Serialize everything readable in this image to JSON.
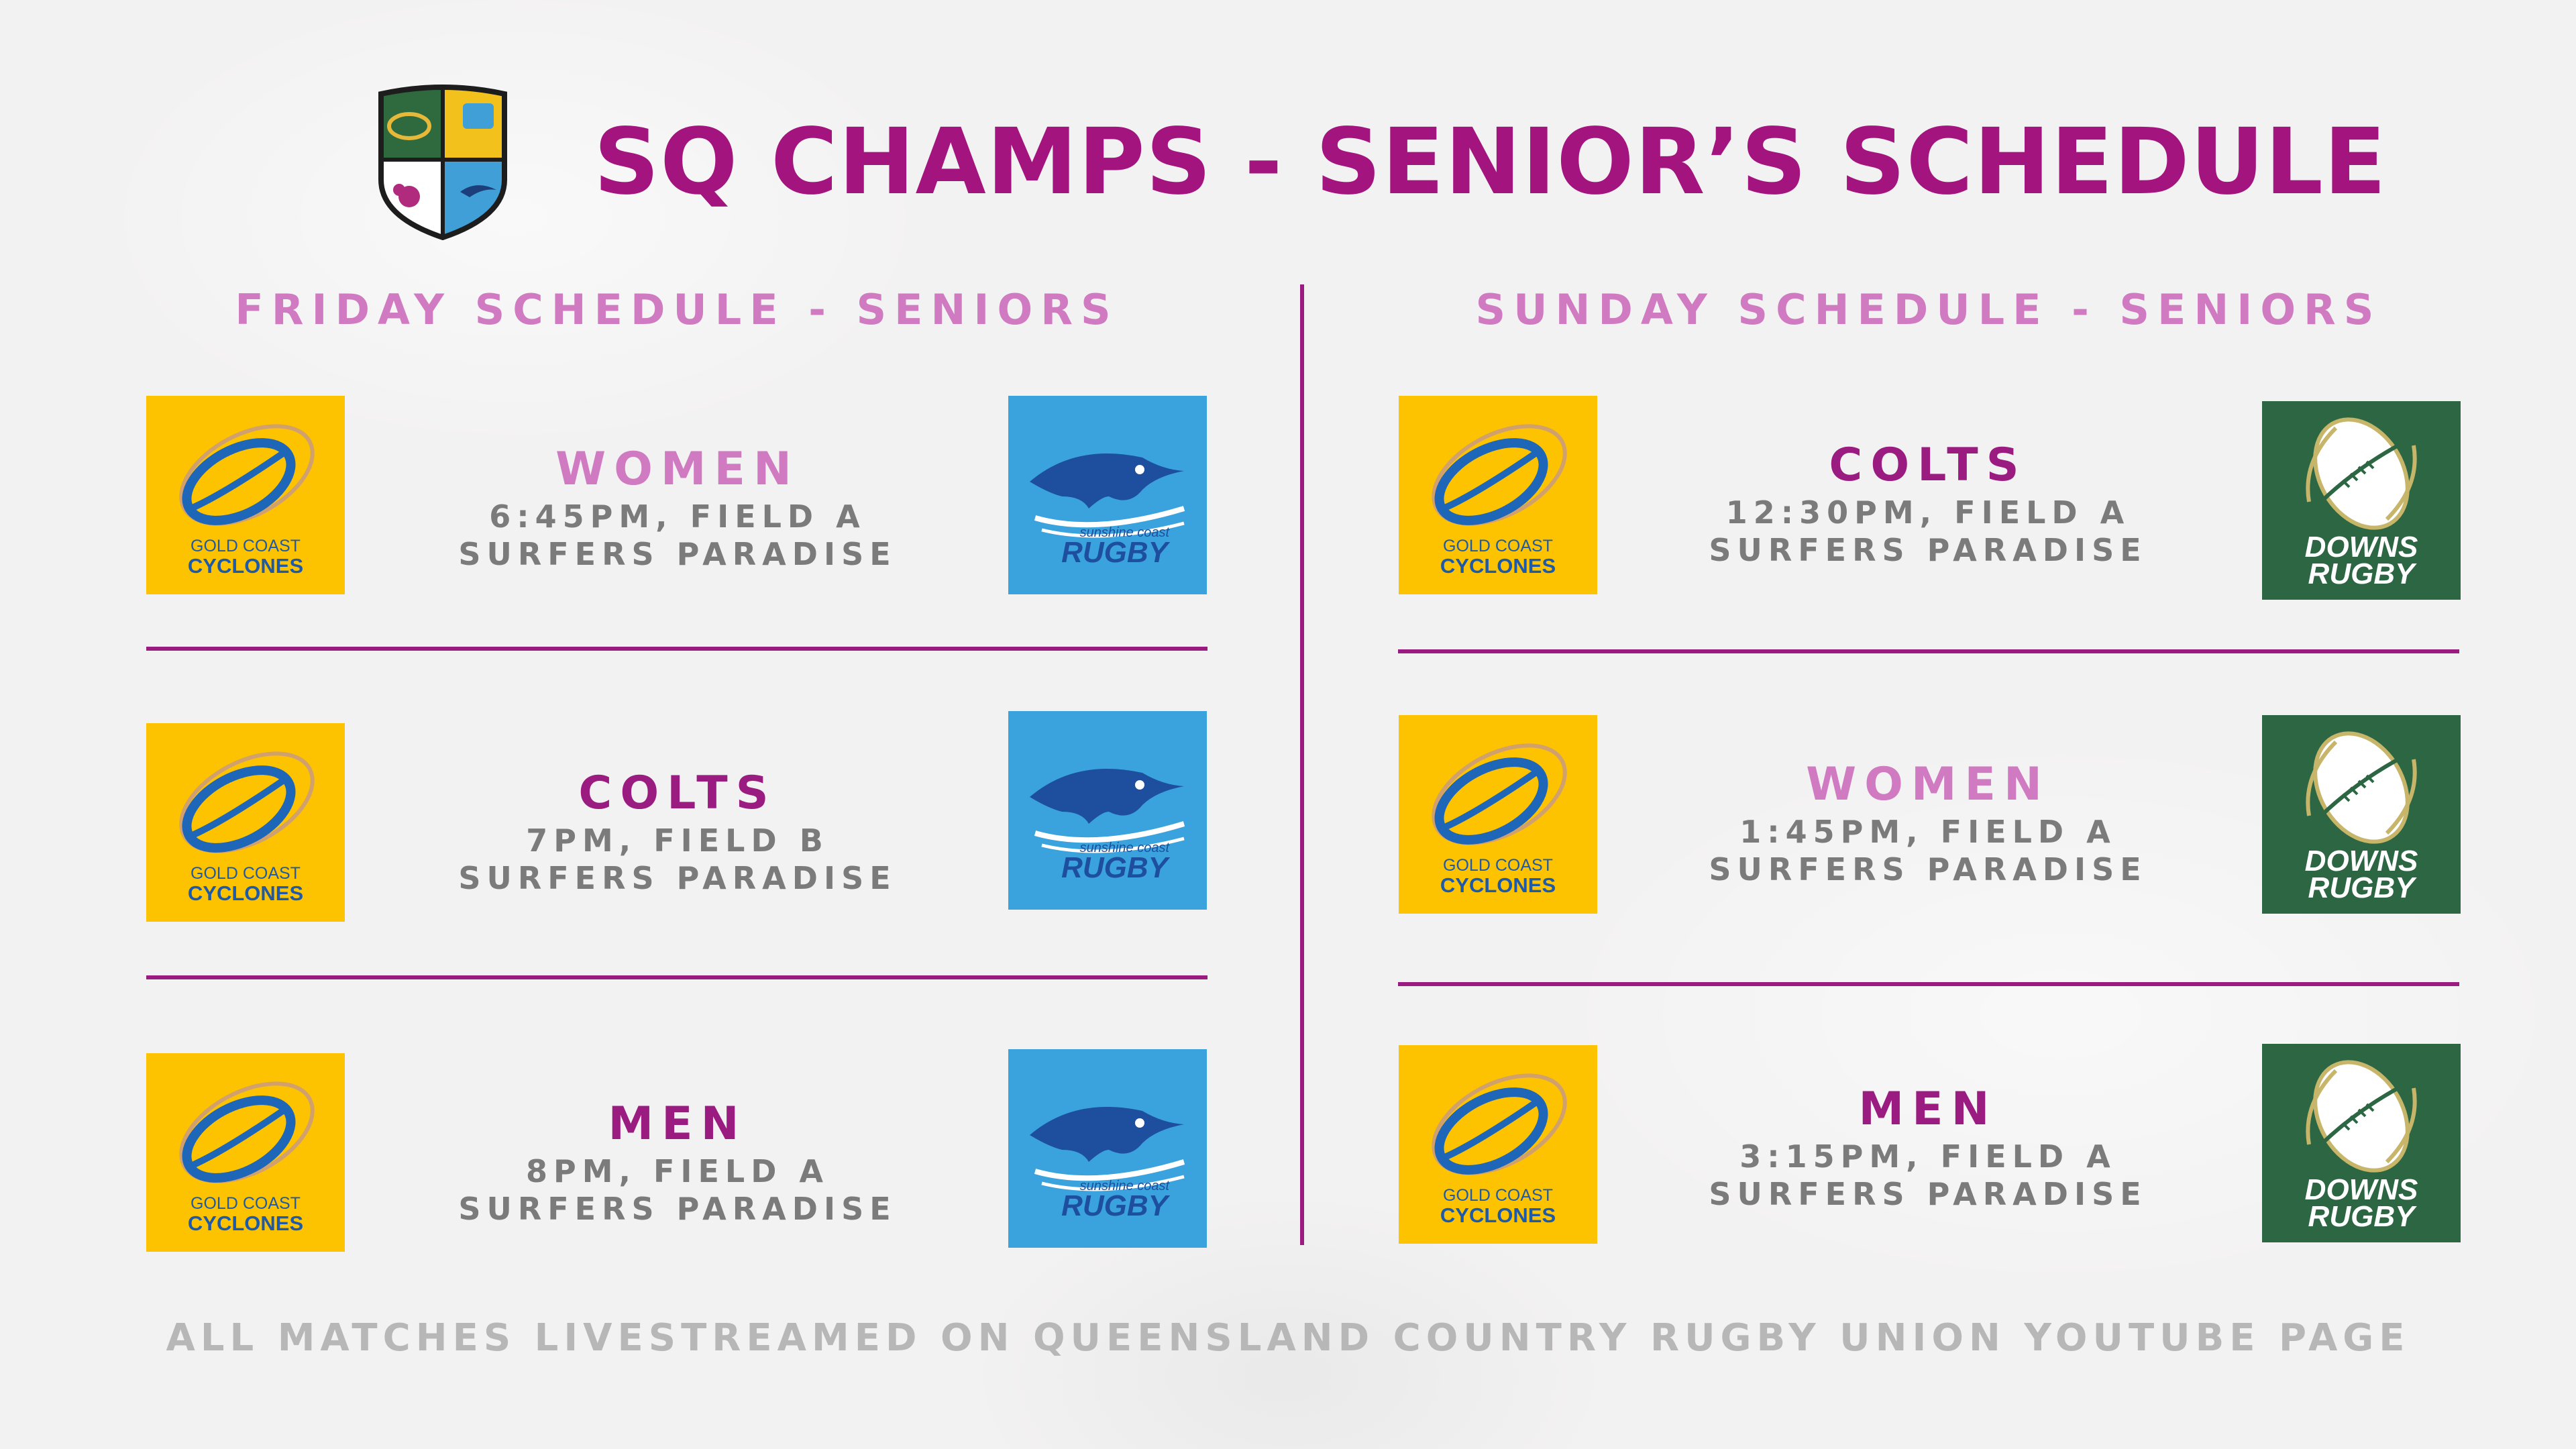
{
  "header": {
    "title": "SQ CHAMPS - SENIOR’S SCHEDULE",
    "crest_icon": "union-crest-icon"
  },
  "colors": {
    "title": "#a3147f",
    "heading": "#d07ac1",
    "divider": "#9b1c81",
    "detail_text": "#7b7b7b",
    "footer_text": "#b7b7b7",
    "gold_coast_bg": "#fdc300",
    "sunshine_coast_bg": "#3aa3dd",
    "downs_bg": "#2c6642"
  },
  "teams": {
    "gold_coast": {
      "line1": "GOLD COAST",
      "line2": "CYCLONES",
      "icon": "gold-coast-cyclones-logo"
    },
    "sunshine_coast": {
      "small": "sunshine coast",
      "big": "RUGBY",
      "icon": "sunshine-coast-rugby-logo"
    },
    "downs": {
      "line1": "DOWNS",
      "line2": "RUGBY",
      "icon": "downs-rugby-logo"
    }
  },
  "friday": {
    "heading": "FRIDAY SCHEDULE - SENIORS",
    "matches": [
      {
        "division": "WOMEN",
        "time": "6:45PM, FIELD A",
        "venue": "SURFERS PARADISE",
        "home": "gold_coast",
        "away": "sunshine_coast"
      },
      {
        "division": "COLTS",
        "time": "7PM, FIELD B",
        "venue": "SURFERS PARADISE",
        "home": "gold_coast",
        "away": "sunshine_coast"
      },
      {
        "division": "MEN",
        "time": "8PM, FIELD A",
        "venue": "SURFERS PARADISE",
        "home": "gold_coast",
        "away": "sunshine_coast"
      }
    ]
  },
  "sunday": {
    "heading": "SUNDAY SCHEDULE - SENIORS",
    "matches": [
      {
        "division": "COLTS",
        "time": "12:30PM, FIELD A",
        "venue": "SURFERS PARADISE",
        "home": "gold_coast",
        "away": "downs"
      },
      {
        "division": "WOMEN",
        "time": "1:45PM, FIELD A",
        "venue": "SURFERS PARADISE",
        "home": "gold_coast",
        "away": "downs"
      },
      {
        "division": "MEN",
        "time": "3:15PM, FIELD A",
        "venue": "SURFERS PARADISE",
        "home": "gold_coast",
        "away": "downs"
      }
    ]
  },
  "footer": {
    "text": "ALL MATCHES LIVESTREAMED ON QUEENSLAND COUNTRY RUGBY UNION YOUTUBE PAGE"
  }
}
